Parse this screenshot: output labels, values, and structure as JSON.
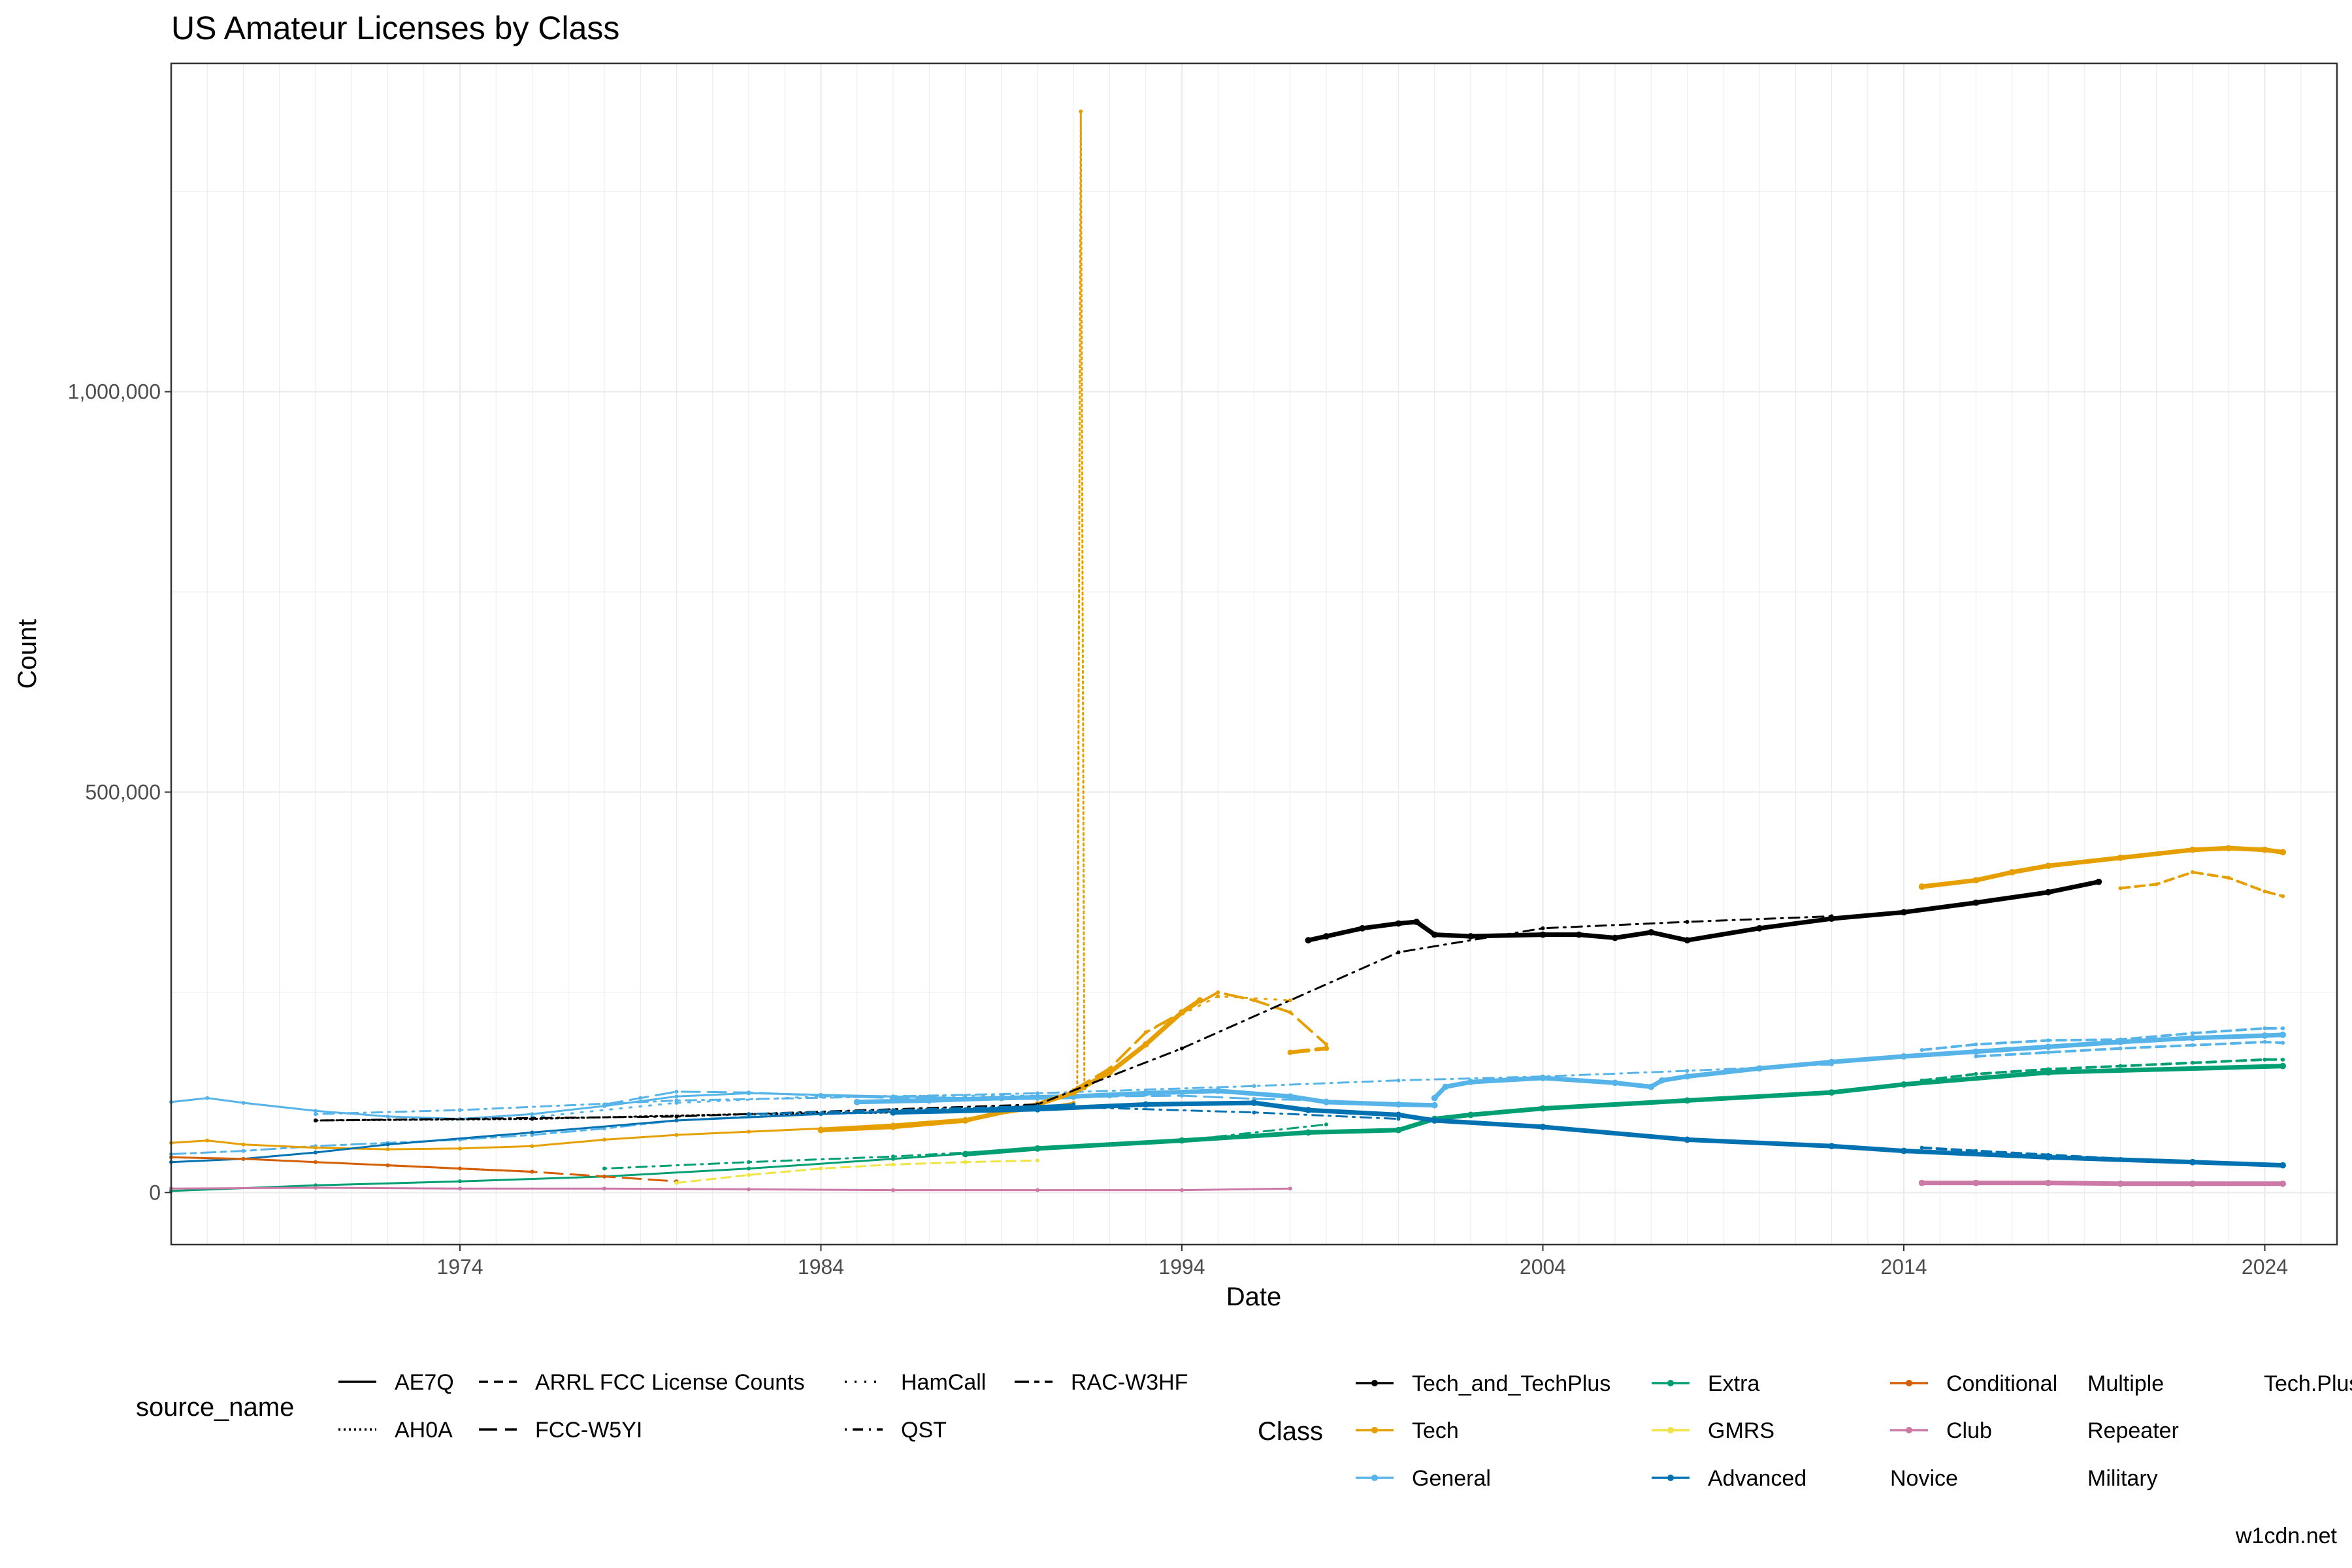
{
  "chart_data": {
    "type": "line",
    "title": "US Amateur Licenses by Class",
    "xlabel": "Date",
    "ylabel": "Count",
    "caption": "w1cdn.net",
    "xlim": [
      1966,
      2026
    ],
    "ylim": [
      -65000,
      1410000
    ],
    "x_ticks": [
      1974,
      1984,
      1994,
      2004,
      2014,
      2024
    ],
    "x_tick_labels": [
      "1974",
      "1984",
      "1994",
      "2004",
      "2014",
      "2024"
    ],
    "y_ticks": [
      0,
      500000,
      1000000
    ],
    "y_tick_labels": [
      "0",
      "500,000",
      "1,000,000"
    ],
    "grid": true,
    "legend_position": "bottom",
    "source_legend": {
      "title": "source_name",
      "entries": [
        {
          "name": "AE7Q",
          "dash": "solid"
        },
        {
          "name": "AH0A",
          "dash": "dotted-dense"
        },
        {
          "name": "ARRL FCC License Counts",
          "dash": "dashed"
        },
        {
          "name": "FCC-W5YI",
          "dash": "longdash"
        },
        {
          "name": "HamCall",
          "dash": "dotted"
        },
        {
          "name": "QST",
          "dash": "dotdash"
        },
        {
          "name": "RAC-W3HF",
          "dash": "twodash"
        }
      ]
    },
    "class_legend": {
      "title": "Class",
      "entries": [
        {
          "name": "Tech_and_TechPlus",
          "color": "#000000",
          "marker": true
        },
        {
          "name": "Tech",
          "color": "#E69F00",
          "marker": true
        },
        {
          "name": "General",
          "color": "#56B4E9",
          "marker": true
        },
        {
          "name": "Extra",
          "color": "#009E73",
          "marker": true
        },
        {
          "name": "GMRS",
          "color": "#F0E442",
          "marker": true
        },
        {
          "name": "Advanced",
          "color": "#0072B2",
          "marker": true
        },
        {
          "name": "Conditional",
          "color": "#D55E00",
          "marker": true
        },
        {
          "name": "Club",
          "color": "#CC79A7",
          "marker": true
        },
        {
          "name": "Novice",
          "color": "",
          "marker": false
        },
        {
          "name": "Multiple",
          "color": "",
          "marker": false
        },
        {
          "name": "Repeater",
          "color": "",
          "marker": false
        },
        {
          "name": "Military",
          "color": "",
          "marker": false
        },
        {
          "name": "Tech.Plus",
          "color": "",
          "marker": false
        }
      ]
    },
    "series": [
      {
        "class": "General",
        "source": "AE7Q",
        "color": "#56B4E9",
        "dash": "solid",
        "width": 3,
        "x": [
          1966,
          1967,
          1968,
          1970,
          1972,
          1974,
          1976,
          1978,
          1980,
          1982,
          1984,
          1986,
          1988,
          1990,
          1991
        ],
        "y": [
          113000,
          118000,
          112000,
          102000,
          95000,
          92000,
          98000,
          108000,
          120000,
          124000,
          122000,
          120000,
          118000,
          117000,
          118000
        ]
      },
      {
        "class": "General",
        "source": "AE7Q",
        "color": "#56B4E9",
        "dash": "solid",
        "width": 7,
        "x": [
          1985,
          1987,
          1989,
          1991,
          1993,
          1995,
          1997,
          1998,
          2000,
          2001
        ],
        "y": [
          113000,
          115000,
          118000,
          120000,
          124000,
          127000,
          120000,
          113000,
          110000,
          109000
        ]
      },
      {
        "class": "General",
        "source": "AE7Q",
        "color": "#56B4E9",
        "dash": "solid",
        "width": 7,
        "x": [
          2001,
          2001.3,
          2002,
          2004,
          2006,
          2007,
          2007.3,
          2008,
          2010,
          2012,
          2014,
          2016,
          2018,
          2020,
          2022,
          2024,
          2024.5
        ],
        "y": [
          118000,
          132000,
          138000,
          143000,
          137000,
          132000,
          140000,
          145000,
          155000,
          163000,
          170000,
          176000,
          182000,
          188000,
          193000,
          196000,
          197000
        ]
      },
      {
        "class": "General",
        "source": "ARRL FCC License Counts",
        "color": "#56B4E9",
        "dash": "dashed",
        "width": 4,
        "x": [
          2014.5,
          2016,
          2018,
          2020,
          2022,
          2024,
          2024.5
        ],
        "y": [
          178000,
          185000,
          190000,
          191000,
          199000,
          205000,
          205000
        ]
      },
      {
        "class": "General",
        "source": "ARRL FCC License Counts",
        "color": "#56B4E9",
        "dash": "dashed",
        "width": 4,
        "x": [
          2016,
          2018,
          2020,
          2022,
          2024,
          2024.5
        ],
        "y": [
          170000,
          175000,
          180000,
          184000,
          188000,
          187000
        ]
      },
      {
        "class": "General",
        "source": "FCC-W5YI",
        "color": "#56B4E9",
        "dash": "longdash",
        "width": 3,
        "x": [
          1978,
          1979,
          1980,
          1982,
          1984,
          1986,
          1988,
          1990,
          1992,
          1994,
          1996,
          1998
        ],
        "y": [
          110000,
          118000,
          126000,
          125000,
          121000,
          118000,
          116000,
          117000,
          120000,
          121000,
          117000,
          115000
        ]
      },
      {
        "class": "General",
        "source": "QST",
        "color": "#56B4E9",
        "dash": "dotdash",
        "width": 3,
        "x": [
          1970,
          1974,
          1980,
          1986,
          1990,
          1996,
          2000,
          2004,
          2008,
          2012
        ],
        "y": [
          98000,
          103000,
          115000,
          120000,
          124000,
          133000,
          140000,
          145000,
          152000,
          160000
        ]
      },
      {
        "class": "General",
        "source": "HamCall",
        "color": "#56B4E9",
        "dash": "dotted",
        "width": 3,
        "x": [
          1976,
          1980,
          1984,
          1988,
          1990
        ],
        "y": [
          94000,
          112000,
          120000,
          121000,
          121000
        ]
      },
      {
        "class": "General",
        "source": "RAC-W3HF",
        "color": "#56B4E9",
        "dash": "twodash",
        "width": 3,
        "x": [
          1966,
          1968,
          1970,
          1972,
          1974,
          1976,
          1978,
          1980,
          1982,
          1984,
          1986,
          1988,
          1990
        ],
        "y": [
          48000,
          52000,
          58000,
          62000,
          66000,
          72000,
          80000,
          90000,
          95000,
          98000,
          100000,
          102000,
          104000
        ]
      },
      {
        "class": "Tech",
        "source": "AE7Q",
        "color": "#E69F00",
        "dash": "solid",
        "width": 3,
        "x": [
          1966,
          1967,
          1968,
          1970,
          1972,
          1974,
          1976,
          1978,
          1980,
          1982,
          1984,
          1986,
          1988,
          1990,
          1991
        ],
        "y": [
          62000,
          65000,
          60000,
          56000,
          54000,
          55000,
          58000,
          66000,
          72000,
          76000,
          80000,
          85000,
          92000,
          105000,
          112000
        ]
      },
      {
        "class": "Tech",
        "source": "AE7Q",
        "color": "#E69F00",
        "dash": "solid",
        "width": 7,
        "x": [
          1984,
          1986,
          1988,
          1990,
          1991,
          1992,
          1993,
          1994,
          1994.5
        ],
        "y": [
          78000,
          82000,
          90000,
          110000,
          125000,
          150000,
          185000,
          225000,
          240000
        ]
      },
      {
        "class": "Tech",
        "source": "AE7Q",
        "color": "#E69F00",
        "dash": "solid",
        "width": 7,
        "x": [
          2014.5,
          2016,
          2017,
          2018,
          2020,
          2022,
          2023,
          2024,
          2024.5
        ],
        "y": [
          382000,
          390000,
          400000,
          408000,
          418000,
          428000,
          430000,
          428000,
          425000
        ]
      },
      {
        "class": "Tech",
        "source": "AH0A",
        "color": "#E69F00",
        "dash": "dotted-dense",
        "width": 3,
        "x": [
          1991.1,
          1991.2,
          1991.3
        ],
        "y": [
          130000,
          1350000,
          130000
        ]
      },
      {
        "class": "Tech",
        "source": "ARRL FCC License Counts",
        "color": "#E69F00",
        "dash": "dashed",
        "width": 4,
        "x": [
          2020,
          2021,
          2022,
          2023,
          2024,
          2024.5
        ],
        "y": [
          380000,
          385000,
          400000,
          393000,
          376000,
          370000
        ]
      },
      {
        "class": "Tech",
        "source": "FCC-W5YI",
        "color": "#E69F00",
        "dash": "longdash",
        "width": 4,
        "x": [
          1991,
          1992,
          1993,
          1995,
          1996,
          1997,
          1998
        ],
        "y": [
          128000,
          155000,
          200000,
          250000,
          240000,
          225000,
          185000
        ]
      },
      {
        "class": "Tech",
        "source": "HamCall",
        "color": "#E69F00",
        "dash": "dotted",
        "width": 3,
        "x": [
          1993,
          1995,
          1997
        ],
        "y": [
          200000,
          245000,
          240000
        ]
      },
      {
        "class": "Tech",
        "source": "FCC-W5YI",
        "color": "#E69F00",
        "dash": "longdash",
        "width": 6,
        "x": [
          1997,
          1998
        ],
        "y": [
          175000,
          180000
        ]
      },
      {
        "class": "Tech_and_TechPlus",
        "source": "AE7Q",
        "color": "#000000",
        "dash": "solid",
        "width": 7,
        "x": [
          1997.5,
          1998,
          1999,
          2000,
          2000.5,
          2001,
          2002,
          2004,
          2005,
          2006,
          2007,
          2008,
          2010,
          2012,
          2014,
          2016,
          2018,
          2019.4
        ],
        "y": [
          315000,
          320000,
          330000,
          336000,
          338000,
          322000,
          320000,
          322000,
          322000,
          318000,
          325000,
          315000,
          330000,
          342000,
          350000,
          362000,
          375000,
          388000
        ]
      },
      {
        "class": "Tech_and_TechPlus",
        "source": "QST",
        "color": "#000000",
        "dash": "dotdash",
        "width": 3,
        "x": [
          1970,
          1980,
          1990,
          1994,
          2000,
          2004,
          2008,
          2012
        ],
        "y": [
          90000,
          95000,
          110000,
          180000,
          300000,
          330000,
          338000,
          345000
        ]
      },
      {
        "class": "Tech_and_TechPlus",
        "source": "AH0A",
        "color": "#000000",
        "dash": "dotted-dense",
        "width": 3,
        "x": [
          1970,
          1976,
          1982,
          1986,
          1990
        ],
        "y": [
          90000,
          92000,
          98000,
          100000,
          105000
        ]
      },
      {
        "class": "Extra",
        "source": "AE7Q",
        "color": "#009E73",
        "dash": "solid",
        "width": 3,
        "x": [
          1966,
          1970,
          1974,
          1978,
          1982,
          1986,
          1990
        ],
        "y": [
          2000,
          9000,
          14000,
          20000,
          30000,
          42000,
          55000
        ]
      },
      {
        "class": "Extra",
        "source": "AE7Q",
        "color": "#009E73",
        "dash": "solid",
        "width": 7,
        "x": [
          1988,
          1990,
          1994,
          1997.5,
          2000,
          2001,
          2002,
          2004,
          2008,
          2012,
          2014,
          2018,
          2024.5
        ],
        "y": [
          48000,
          55000,
          65000,
          75000,
          78000,
          92000,
          97000,
          105000,
          115000,
          125000,
          135000,
          150000,
          158000
        ]
      },
      {
        "class": "Extra",
        "source": "ARRL FCC License Counts",
        "color": "#009E73",
        "dash": "dashed",
        "width": 4,
        "x": [
          2014.5,
          2016,
          2018,
          2020,
          2022,
          2024,
          2024.5
        ],
        "y": [
          140000,
          148000,
          154000,
          158000,
          162000,
          166000,
          166000
        ]
      },
      {
        "class": "Extra",
        "source": "QST",
        "color": "#009E73",
        "dash": "dotdash",
        "width": 3,
        "x": [
          1978,
          1982,
          1986,
          1990,
          1994,
          1998
        ],
        "y": [
          30000,
          38000,
          45000,
          55000,
          65000,
          85000
        ]
      },
      {
        "class": "Advanced",
        "source": "AE7Q",
        "color": "#0072B2",
        "dash": "solid",
        "width": 3,
        "x": [
          1966,
          1968,
          1970,
          1972,
          1976,
          1980,
          1984,
          1988,
          1991
        ],
        "y": [
          38000,
          42000,
          50000,
          60000,
          75000,
          90000,
          98000,
          104000,
          110000
        ]
      },
      {
        "class": "Advanced",
        "source": "AE7Q",
        "color": "#0072B2",
        "dash": "solid",
        "width": 7,
        "x": [
          1986,
          1990,
          1993,
          1996,
          1997.5,
          2000,
          2001,
          2004,
          2008,
          2012,
          2014,
          2018,
          2022,
          2024.5
        ],
        "y": [
          100000,
          104000,
          110000,
          112000,
          103000,
          97000,
          90000,
          82000,
          66000,
          58000,
          52000,
          44000,
          38000,
          34000
        ]
      },
      {
        "class": "Advanced",
        "source": "ARRL FCC License Counts",
        "color": "#0072B2",
        "dash": "dashed",
        "width": 4,
        "x": [
          2014.5,
          2016,
          2018,
          2020,
          2022,
          2024.5
        ],
        "y": [
          56000,
          52000,
          47000,
          42000,
          38000,
          34000
        ]
      },
      {
        "class": "Advanced",
        "source": "QST",
        "color": "#0072B2",
        "dash": "dotdash",
        "width": 3,
        "x": [
          1982,
          1986,
          1990,
          1996,
          2000
        ],
        "y": [
          98000,
          103000,
          108000,
          100000,
          92000
        ]
      },
      {
        "class": "Conditional",
        "source": "AE7Q",
        "color": "#D55E00",
        "dash": "solid",
        "width": 3,
        "x": [
          1966,
          1968,
          1970,
          1972,
          1974,
          1976
        ],
        "y": [
          44000,
          42000,
          38000,
          34000,
          30000,
          26000
        ]
      },
      {
        "class": "Conditional",
        "source": "FCC-W5YI",
        "color": "#D55E00",
        "dash": "longdash",
        "width": 3,
        "x": [
          1972,
          1974,
          1976,
          1978,
          1980
        ],
        "y": [
          34000,
          30000,
          26000,
          20000,
          14000
        ]
      },
      {
        "class": "GMRS",
        "source": "HamCall",
        "color": "#F0E442",
        "dash": "dashed",
        "width": 3,
        "x": [
          1980,
          1982,
          1984,
          1986,
          1988,
          1990
        ],
        "y": [
          12000,
          22000,
          30000,
          35000,
          38000,
          40000
        ]
      },
      {
        "class": "Club",
        "source": "AE7Q",
        "color": "#CC79A7",
        "dash": "solid",
        "width": 3,
        "x": [
          1966,
          1970,
          1974,
          1978,
          1982,
          1986,
          1990,
          1994,
          1997
        ],
        "y": [
          5000,
          6000,
          5000,
          5000,
          4000,
          3000,
          3000,
          3000,
          5000
        ]
      },
      {
        "class": "Club",
        "source": "AE7Q",
        "color": "#CC79A7",
        "dash": "solid",
        "width": 7,
        "x": [
          2014.5,
          2016,
          2018,
          2020,
          2022,
          2024.5
        ],
        "y": [
          12000,
          12000,
          12000,
          11000,
          11000,
          11000
        ]
      }
    ]
  }
}
